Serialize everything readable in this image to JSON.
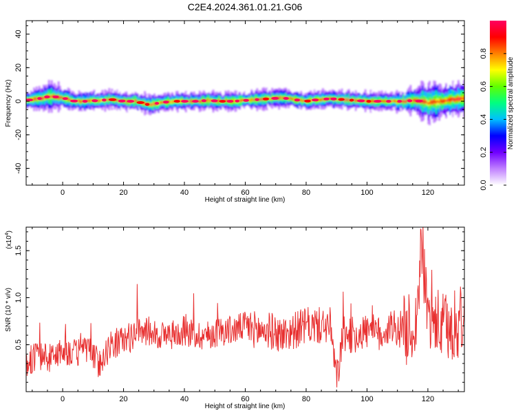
{
  "title": "C2E4.2024.361.01.21.G06",
  "chart_data": [
    {
      "type": "heatmap",
      "xlabel": "Height of straight line (km)",
      "ylabel": "Frequency (Hz)",
      "xlim": [
        -12,
        132
      ],
      "ylim": [
        -50,
        48
      ],
      "xticks": [
        0,
        20,
        40,
        60,
        80,
        100,
        120
      ],
      "yticks": [
        -40,
        -20,
        0,
        20,
        40
      ],
      "colorbar": {
        "label": "Normalized spectral amplitude",
        "range": [
          0,
          1
        ],
        "ticks": [
          "0.0",
          "0.2",
          "0.4",
          "0.6",
          "0.8"
        ],
        "tick_values": [
          0,
          0.2,
          0.4,
          0.6,
          0.8
        ],
        "colors": [
          "#ffffff",
          "#c080ff",
          "#7000ff",
          "#0000ff",
          "#00c0ff",
          "#00ff80",
          "#60ff00",
          "#ffff00",
          "#ff8000",
          "#ff0000",
          "#ff0060"
        ]
      },
      "ridge": {
        "x": [
          -12,
          -8,
          -4,
          0,
          4,
          8,
          12,
          16,
          20,
          24,
          28,
          32,
          36,
          40,
          44,
          48,
          52,
          56,
          60,
          64,
          68,
          72,
          76,
          80,
          84,
          88,
          92,
          96,
          100,
          104,
          108,
          112,
          116,
          120,
          124,
          128,
          132
        ],
        "frequency_hz": [
          0.5,
          1.5,
          3,
          2,
          0,
          0,
          0.5,
          1,
          0,
          0,
          -2,
          -1,
          0,
          0,
          0,
          0.5,
          0,
          0,
          0.5,
          1,
          1.5,
          2,
          1,
          0,
          1,
          1.5,
          1,
          0.5,
          0,
          0,
          0,
          0,
          0.5,
          -1,
          0,
          1,
          2
        ],
        "spread_hz": [
          4,
          5,
          6,
          5,
          4,
          4,
          4,
          4,
          4,
          4,
          5,
          4,
          4,
          4,
          4,
          4,
          4,
          4,
          4,
          4,
          4,
          4,
          4,
          4,
          4,
          4,
          4,
          4,
          4,
          4,
          4,
          5,
          6,
          9,
          8,
          8,
          8
        ]
      }
    },
    {
      "type": "line",
      "xlabel": "Height of straight line (km)",
      "ylabel": "SNR (10 * v/v)",
      "y_multiplier": "(x10",
      "y_multiplier_exp": "4",
      "y_multiplier_close": ")",
      "xlim": [
        -12,
        132
      ],
      "ylim": [
        0,
        1.75
      ],
      "xticks": [
        0,
        20,
        40,
        60,
        80,
        100,
        120
      ],
      "yticks": [
        0.5,
        1.0,
        1.5
      ],
      "ytick_labels": [
        "0.5",
        "1.0",
        "1.5"
      ],
      "color": "#e83030",
      "series": [
        {
          "x": [
            -12,
            -8,
            -4,
            0,
            4,
            8,
            12,
            16,
            20,
            24,
            28,
            32,
            36,
            40,
            44,
            48,
            52,
            56,
            60,
            64,
            68,
            72,
            76,
            80,
            84,
            88,
            90,
            92,
            96,
            100,
            104,
            108,
            112,
            116,
            118,
            120,
            124,
            128,
            132
          ],
          "values": [
            0.3,
            0.4,
            0.35,
            0.45,
            0.4,
            0.45,
            0.3,
            0.5,
            0.55,
            0.6,
            0.65,
            0.6,
            0.6,
            0.65,
            0.6,
            0.6,
            0.65,
            0.65,
            0.7,
            0.65,
            0.65,
            0.6,
            0.65,
            0.7,
            0.7,
            0.7,
            0.1,
            0.6,
            0.6,
            0.65,
            0.6,
            0.7,
            0.65,
            0.7,
            1.55,
            0.8,
            0.7,
            0.65,
            0.8
          ]
        }
      ]
    }
  ]
}
